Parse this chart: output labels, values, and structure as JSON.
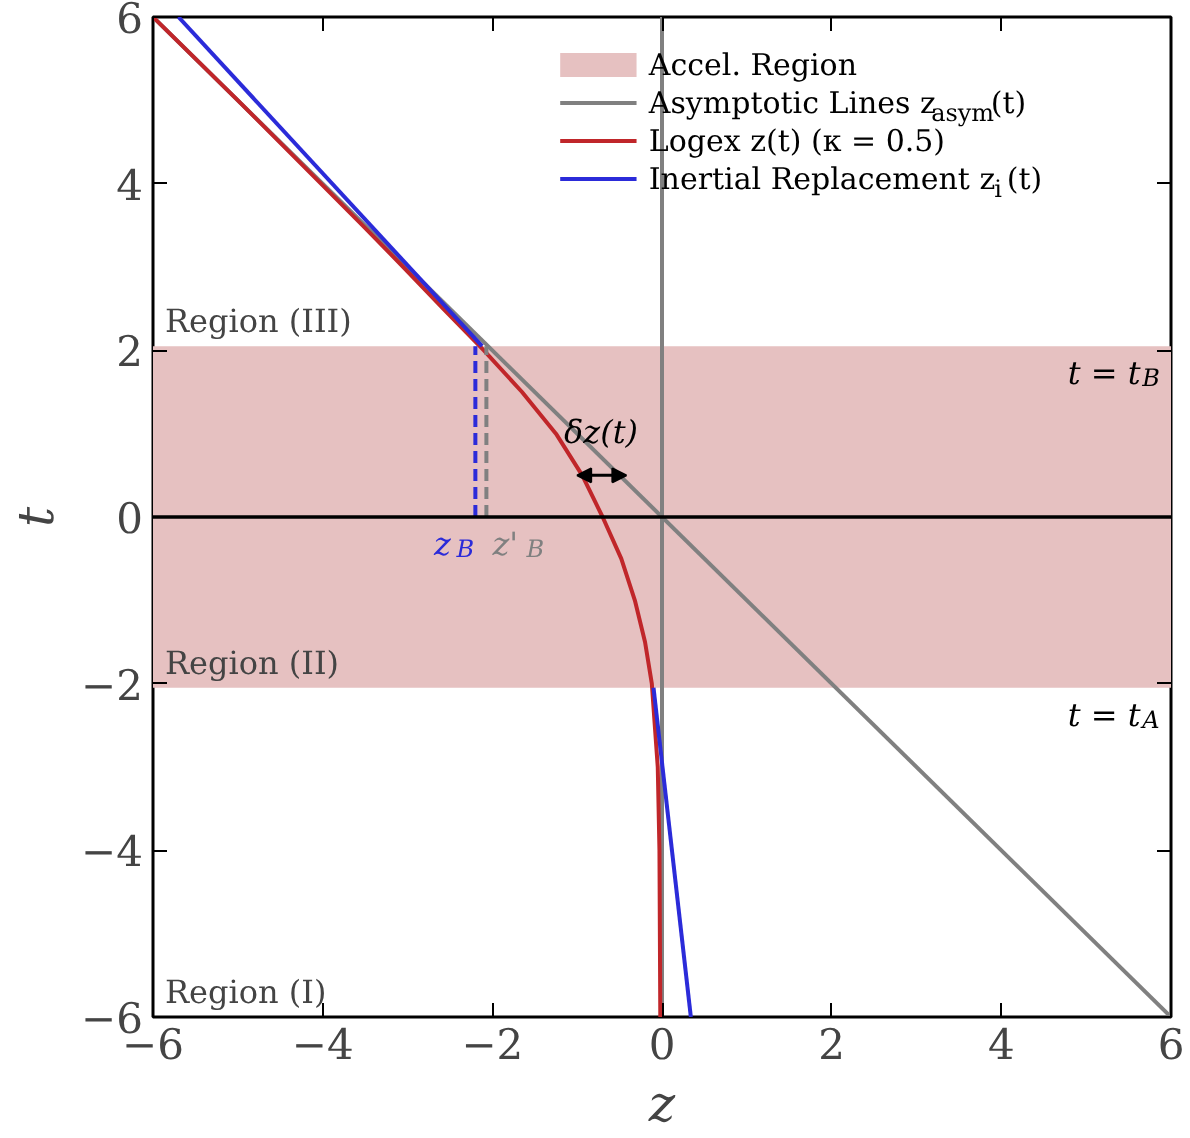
{
  "chart_data": {
    "type": "line",
    "xlabel": "z",
    "ylabel": "t",
    "xlim": [
      -6,
      6
    ],
    "ylim": [
      -6,
      6
    ],
    "xticks": [
      -6,
      -4,
      -2,
      0,
      2,
      4,
      6
    ],
    "yticks": [
      -6,
      -4,
      -2,
      0,
      2,
      4,
      6
    ],
    "grid": false,
    "legend": "top right",
    "line_style": "solid",
    "marker": "none",
    "series": [
      {
        "name": "Asymptotic Lines z$_{asym}$(t)",
        "color": "#808080",
        "x": [
          -6,
          6
        ],
        "values": [
          6,
          -6
        ]
      },
      {
        "color": "#808080",
        "x": [
          0,
          0
        ],
        "values": [
          -6,
          6
        ]
      },
      {
        "name": "Logex z(t) (κ = 0.5)",
        "color": "#c0262a",
        "x": [
          -6,
          -5,
          -4.02,
          -3.53,
          -3.05,
          -2.58,
          -2.1,
          -1.65,
          -1.25,
          -0.94,
          -0.7,
          -0.48,
          -0.32,
          -0.2,
          -0.12,
          -0.05,
          -0.03,
          -0.02
        ],
        "values": [
          6,
          5,
          4,
          3.5,
          3,
          2.5,
          2,
          1.5,
          1,
          0.5,
          0,
          -0.5,
          -1,
          -1.5,
          -2,
          -3,
          -4,
          -6
        ]
      },
      {
        "name": "Inertial Replacement z$_{i}$(t)",
        "color": "#2b2bd9",
        "x": [
          -5.7,
          -2.12
        ],
        "values": [
          6,
          2.05
        ]
      },
      {
        "color": "#2b2bd9",
        "x": [
          -0.1,
          0.34
        ],
        "values": [
          -2.05,
          -6
        ]
      },
      {
        "color": "#2b2bd9",
        "line_style": "dashed",
        "x": [
          -2.2,
          -2.2
        ],
        "values": [
          0,
          2.05
        ]
      },
      {
        "color": "#808080",
        "line_style": "dashed",
        "x": [
          -2.07,
          -2.07
        ],
        "values": [
          0,
          2.05
        ]
      }
    ],
    "bands": [
      {
        "axis": "y",
        "from": -2.05,
        "to": 2.05,
        "label": "Accel. Region",
        "color": "#e6c1c1"
      }
    ],
    "ref_lines": [
      {
        "axis": "y",
        "value": 0,
        "color": "#000000"
      }
    ],
    "annotations": [
      "Region (III)",
      "Region (II)",
      "Region (I)",
      {
        "text": "t = t$_{B}$",
        "x": 6,
        "y": 2.05
      },
      {
        "text": "t = t$_{A}$",
        "x": 6,
        "y": -2.05
      },
      {
        "text": "δz(t)",
        "x": -0.72,
        "y": 0.5
      },
      {
        "text": "z$_{B}$",
        "x": -2.2,
        "y": 0
      },
      {
        "text": "z'$_{B}$",
        "x": -2.07,
        "y": 0
      }
    ]
  }
}
